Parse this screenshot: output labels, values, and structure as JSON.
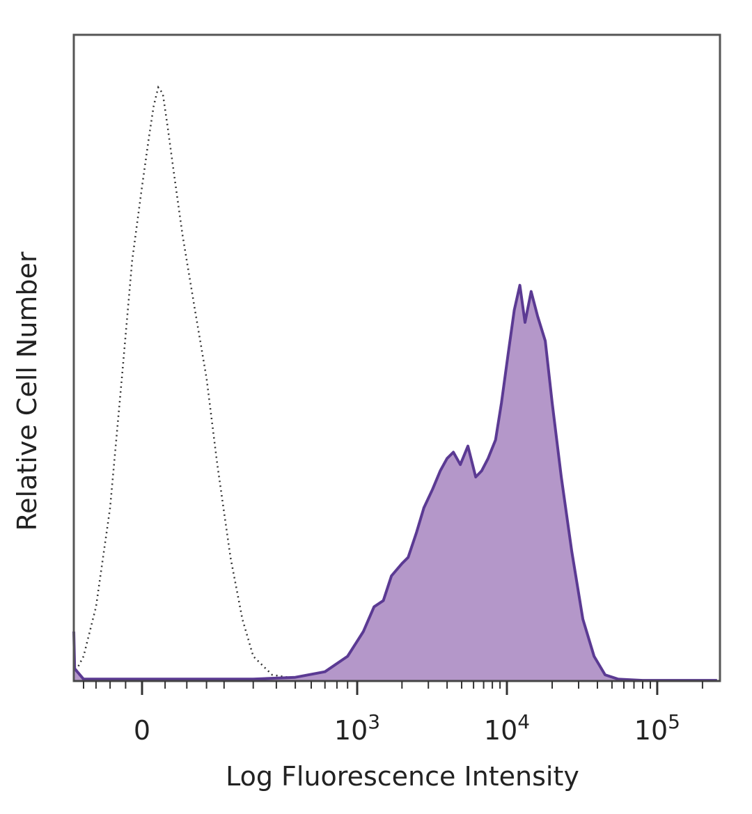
{
  "chart_data": {
    "type": "area",
    "x_scale": "biexponential",
    "xlabel": "Log Fluorescence Intensity",
    "ylabel": "Relative Cell Number",
    "x_ticks": [
      {
        "value": 0,
        "base": "0",
        "exp": ""
      },
      {
        "value": 1000,
        "base": "10",
        "exp": "3"
      },
      {
        "value": 10000,
        "base": "10",
        "exp": "4"
      },
      {
        "value": 100000,
        "base": "10",
        "exp": "5"
      }
    ],
    "xlim": [
      -250,
      250000
    ],
    "ylim": [
      0,
      100
    ],
    "grid": false,
    "series": [
      {
        "role": "isotype-control",
        "style": "dotted",
        "color": "#333333",
        "points": [
          [
            -250,
            1
          ],
          [
            -200,
            4
          ],
          [
            -150,
            12
          ],
          [
            -100,
            28
          ],
          [
            -60,
            50
          ],
          [
            -30,
            68
          ],
          [
            0,
            80
          ],
          [
            15,
            88
          ],
          [
            25,
            93
          ],
          [
            35,
            96
          ],
          [
            45,
            95
          ],
          [
            55,
            90
          ],
          [
            70,
            82
          ],
          [
            90,
            72
          ],
          [
            120,
            60
          ],
          [
            150,
            49
          ],
          [
            180,
            35
          ],
          [
            220,
            20
          ],
          [
            260,
            10
          ],
          [
            300,
            4
          ],
          [
            380,
            1
          ],
          [
            500,
            0.4
          ],
          [
            700,
            0
          ]
        ]
      },
      {
        "role": "stained-sample",
        "style": "filled",
        "color": "#5b3a93",
        "fill": "#b497c9",
        "points": [
          [
            -250,
            8
          ],
          [
            -240,
            2
          ],
          [
            -200,
            0.3
          ],
          [
            300,
            0.3
          ],
          [
            500,
            0.6
          ],
          [
            700,
            1.5
          ],
          [
            900,
            4
          ],
          [
            1100,
            8
          ],
          [
            1300,
            12
          ],
          [
            1500,
            13
          ],
          [
            1700,
            17
          ],
          [
            2000,
            19
          ],
          [
            2200,
            20
          ],
          [
            2500,
            24
          ],
          [
            2800,
            28
          ],
          [
            3200,
            31
          ],
          [
            3600,
            34
          ],
          [
            4000,
            36
          ],
          [
            4400,
            37
          ],
          [
            4900,
            35
          ],
          [
            5500,
            38
          ],
          [
            6200,
            33
          ],
          [
            6800,
            34
          ],
          [
            7500,
            36
          ],
          [
            8400,
            39
          ],
          [
            9200,
            45
          ],
          [
            10200,
            53
          ],
          [
            11200,
            60
          ],
          [
            12200,
            64
          ],
          [
            13200,
            58
          ],
          [
            14500,
            63
          ],
          [
            16000,
            59
          ],
          [
            18000,
            55
          ],
          [
            20000,
            45
          ],
          [
            23000,
            33
          ],
          [
            27000,
            21
          ],
          [
            32000,
            10
          ],
          [
            38000,
            4
          ],
          [
            45000,
            1
          ],
          [
            55000,
            0.3
          ],
          [
            80000,
            0.1
          ],
          [
            250000,
            0.1
          ]
        ]
      }
    ]
  }
}
